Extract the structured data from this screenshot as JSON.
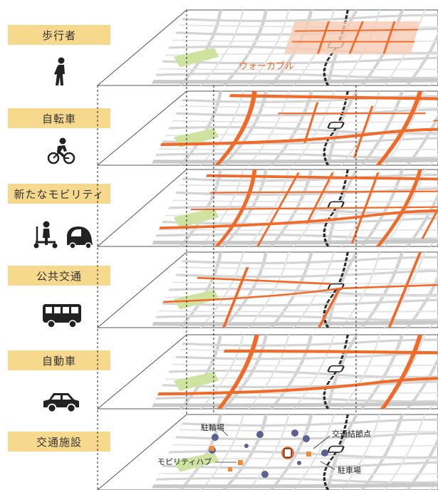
{
  "layers": [
    {
      "label": "歩行者",
      "icon": "pedestrian-icon"
    },
    {
      "label": "自転車",
      "icon": "bicycle-icon"
    },
    {
      "label": "新たなモビリティ",
      "icon": "kickscooter-and-microcar-icon"
    },
    {
      "label": "公共交通",
      "icon": "bus-icon"
    },
    {
      "label": "自動車",
      "icon": "car-icon"
    },
    {
      "label": "交通施設",
      "icon": ""
    }
  ],
  "annotations": {
    "walkable": "ウォーカブル",
    "bicycle_parking": "駐輪場",
    "transport_node": "交通結節点",
    "mobility_hub": "モビリティハブ",
    "car_parking": "駐車場"
  },
  "colors": {
    "label_bg": "#f7d98e",
    "network": "#f06a2a",
    "walkable_zone": "#f8cbb5",
    "park": "#cfe3a0",
    "street": "#d4d4d4",
    "railway": "#2b2b2b",
    "parking_marker": "#5a5f94",
    "hub_marker": "#f28a3a"
  }
}
